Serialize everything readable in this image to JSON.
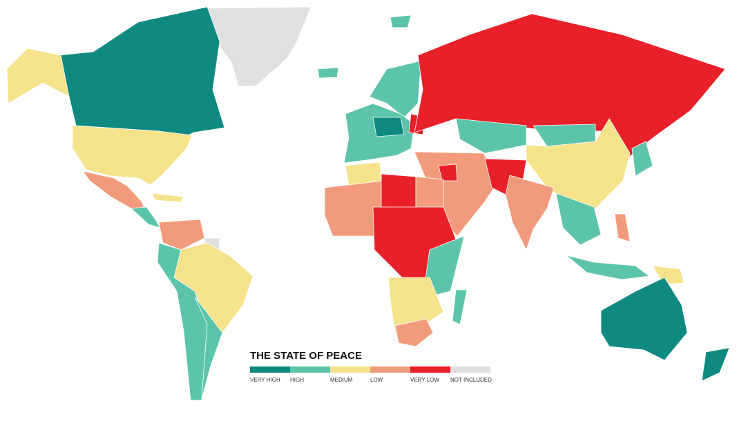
{
  "legend": {
    "title": "THE STATE OF PEACE",
    "items": [
      {
        "label": "VERY HIGH",
        "color": "#0e8a80"
      },
      {
        "label": "HIGH",
        "color": "#5cc4aa"
      },
      {
        "label": "MEDIUM",
        "color": "#f5e38b"
      },
      {
        "label": "LOW",
        "color": "#f29a7c"
      },
      {
        "label": "VERY LOW",
        "color": "#e8202a"
      },
      {
        "label": "NOT INCLUDED",
        "color": "#e0e0e0"
      }
    ]
  }
}
